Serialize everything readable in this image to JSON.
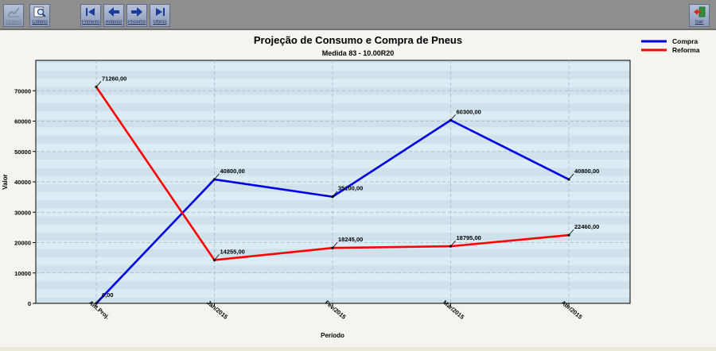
{
  "toolbar": {
    "grafico_label": "Gráfico",
    "criterio_label": "Critério",
    "primeiro_label": "Primeiro",
    "anterior_label": "Anterior",
    "proximo_label": "Próximo",
    "ultimo_label": "Último",
    "sair_label": "Sair"
  },
  "chart_data": {
    "type": "line",
    "title": "Projeção de Consumo e Compra de Pneus",
    "subtitle": "Medida 83 - 10.00R20",
    "xlabel": "Período",
    "ylabel": "Valor",
    "categories": [
      "Ant.Proj.",
      "Jan/2015",
      "Fev/2015",
      "Mar/2015",
      "Abr/2015"
    ],
    "ylim": [
      0,
      80000
    ],
    "yticks": [
      "0",
      "10000",
      "20000",
      "30000",
      "40000",
      "50000",
      "60000",
      "70000"
    ],
    "grid": true,
    "legend_position": "right",
    "series": [
      {
        "name": "Compra",
        "color": "#0000e6",
        "values": [
          0,
          40800,
          35100,
          60300,
          40800
        ],
        "labels": [
          "0,00",
          "40800,00",
          "35100,00",
          "60300,00",
          "40800,00"
        ]
      },
      {
        "name": "Reforma",
        "color": "#ff0000",
        "values": [
          71260,
          14255,
          18245,
          18795,
          22460
        ],
        "labels": [
          "71260,00",
          "14255,00",
          "18245,00",
          "18795,00",
          "22460,00"
        ]
      }
    ]
  }
}
